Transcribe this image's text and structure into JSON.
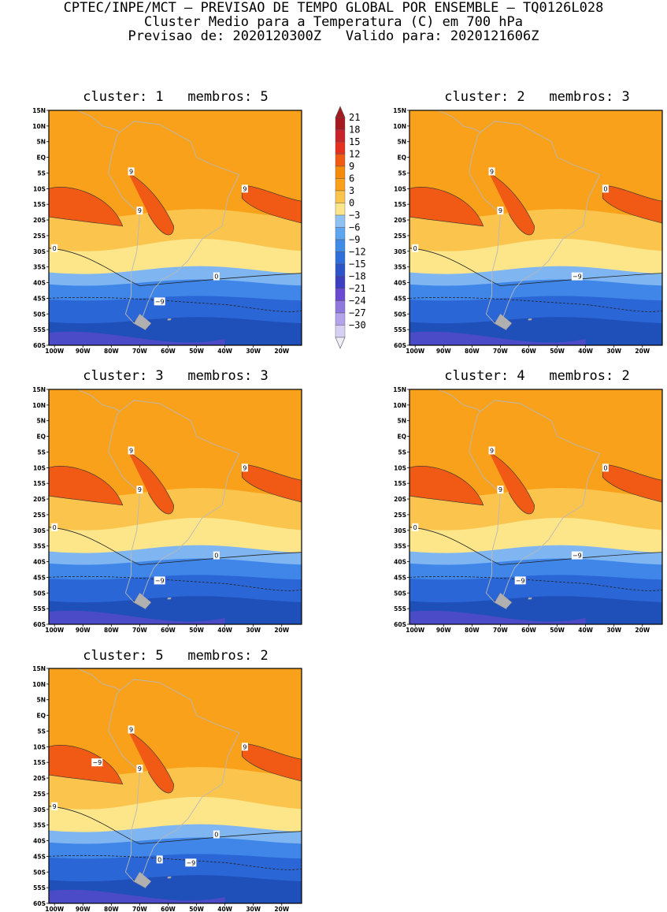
{
  "header": {
    "line1": "CPTEC/INPE/MCT — PREVISAO DE TEMPO GLOBAL POR ENSEMBLE — TQ0126L028",
    "line2": "Cluster Medio para a Temperatura (C) em 700 hPa",
    "line3": "Previsao de: 2020120300Z   Valido para: 2020121606Z"
  },
  "lat_labels": [
    "15N",
    "10N",
    "5N",
    "EQ",
    "5S",
    "10S",
    "15S",
    "20S",
    "25S",
    "30S",
    "35S",
    "40S",
    "45S",
    "50S",
    "55S",
    "60S"
  ],
  "lon_labels": [
    "100W",
    "90W",
    "80W",
    "70W",
    "60W",
    "50W",
    "40W",
    "30W",
    "20W"
  ],
  "colorbar": {
    "labels": [
      "21",
      "18",
      "15",
      "12",
      "9",
      "6",
      "3",
      "0",
      "−3",
      "−6",
      "−9",
      "−12",
      "−15",
      "−18",
      "−21",
      "−24",
      "−27",
      "−30"
    ],
    "colors": [
      "#a51a1e",
      "#c8232a",
      "#e3301f",
      "#f05a14",
      "#f58b0a",
      "#f9a11a",
      "#fbc54d",
      "#fde68a",
      "#8fc1f5",
      "#5fa5ef",
      "#3f8be6",
      "#2f6fdc",
      "#2b55c9",
      "#3d3fc0",
      "#6a4ad0",
      "#8f78de",
      "#b4a3ea",
      "#d8d0f4"
    ]
  },
  "panels": [
    {
      "title": "cluster: 1   membros: 5",
      "labels": [
        "9",
        "9",
        "9",
        "0",
        "0",
        "−9"
      ]
    },
    {
      "title": "cluster: 2   membros: 3",
      "labels": [
        "9",
        "9",
        "0",
        "0",
        "−9"
      ]
    },
    {
      "title": "cluster: 3   membros: 3",
      "labels": [
        "9",
        "9",
        "9",
        "0",
        "0",
        "−9"
      ]
    },
    {
      "title": "cluster: 4   membros: 2",
      "labels": [
        "9",
        "9",
        "0",
        "0",
        "−9",
        "−9"
      ]
    },
    {
      "title": "cluster: 5   membros: 2",
      "labels": [
        "9",
        "9",
        "9",
        "9",
        "0",
        "0",
        "−9",
        "−9"
      ]
    }
  ]
}
